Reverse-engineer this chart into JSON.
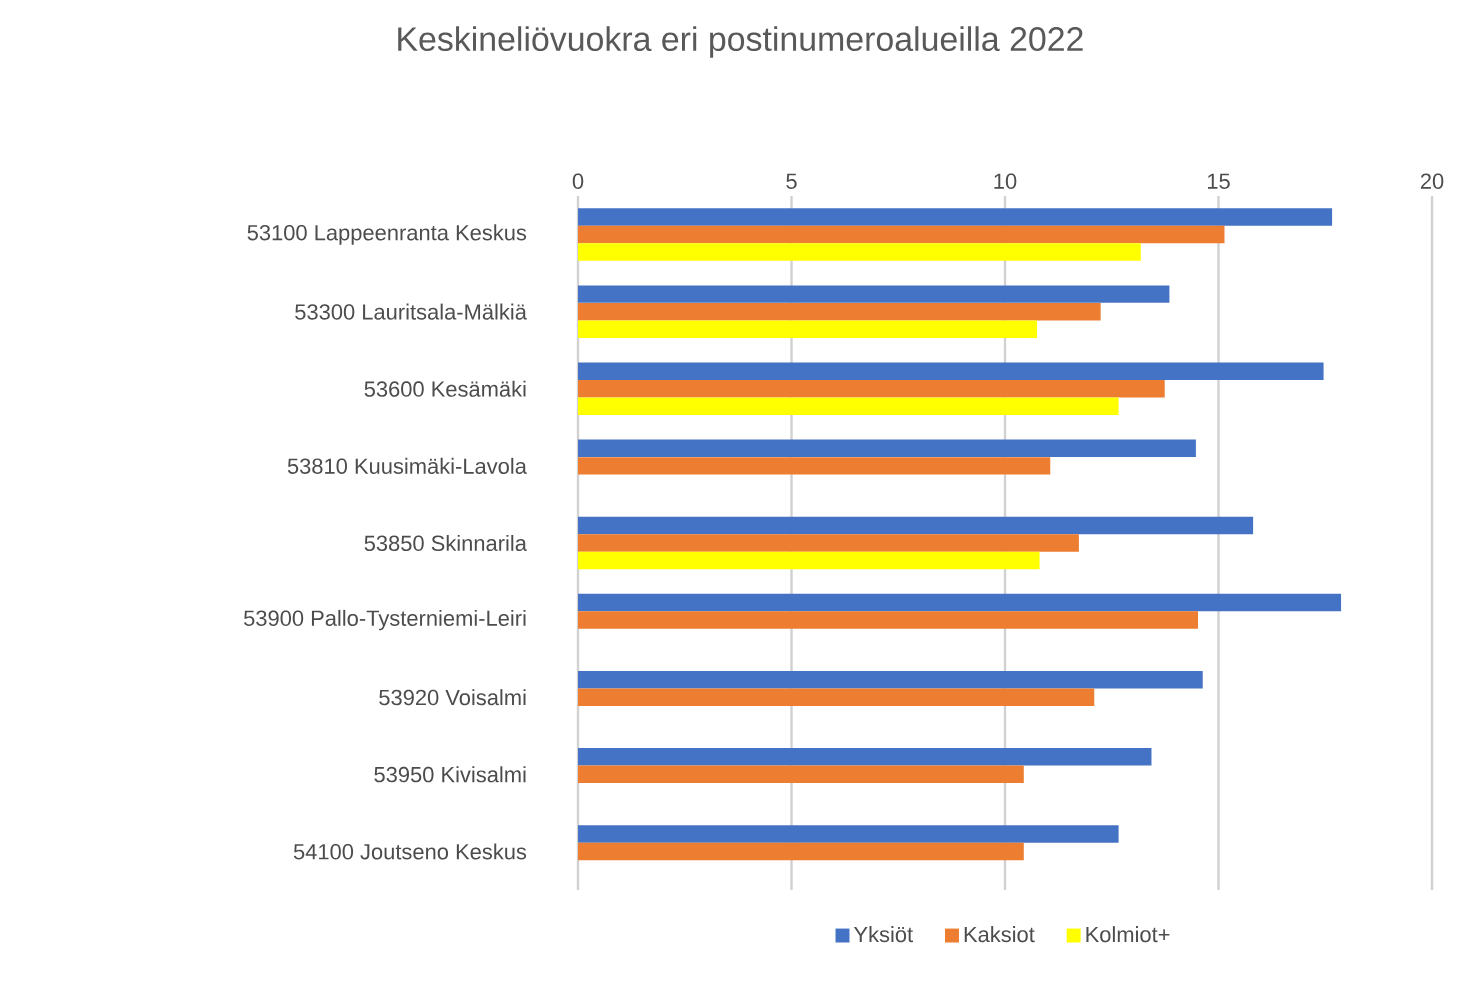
{
  "chart_data": {
    "type": "bar",
    "orientation": "horizontal",
    "title": "Keskineliövuokra eri postinumeroalueilla 2022",
    "categories": [
      "53100 Lappeenranta Keskus",
      "53300 Lauritsala-Mälkiä",
      "53600 Kesämäki",
      "53810 Kuusimäki-Lavola",
      "53850 Skinnarila",
      "53900 Pallo-Tysterniemi-Leiri",
      "53920 Voisalmi",
      "53950 Kivisalmi",
      "54100 Joutseno Keskus"
    ],
    "series": [
      {
        "name": "Yksiöt",
        "color": "#4472c4",
        "values": [
          17.66,
          13.85,
          17.46,
          14.47,
          15.81,
          17.87,
          14.63,
          13.43,
          12.66
        ]
      },
      {
        "name": "Kaksiot",
        "color": "#ed7d31",
        "values": [
          15.14,
          12.24,
          13.74,
          11.06,
          11.73,
          14.52,
          12.09,
          10.44,
          10.44
        ]
      },
      {
        "name": "Kolmiot+",
        "color": "#ffff00",
        "values": [
          13.18,
          10.75,
          12.66,
          null,
          10.81,
          null,
          null,
          null,
          null
        ]
      }
    ],
    "xlim": [
      0,
      20
    ],
    "xticks": [
      0,
      5,
      10,
      15,
      20
    ],
    "grid": "x",
    "legend": "bottom"
  }
}
